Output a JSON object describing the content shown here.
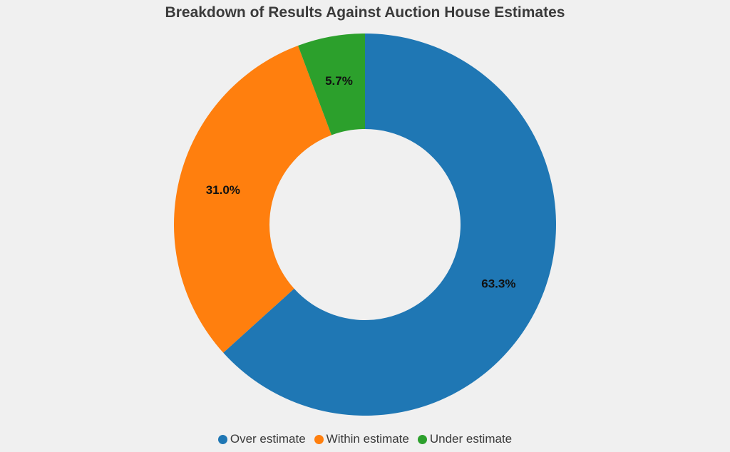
{
  "chart_data": {
    "type": "pie",
    "title": "Breakdown of Results Against Auction House Estimates",
    "categories": [
      "Over estimate",
      "Within estimate",
      "Under estimate"
    ],
    "values": [
      63.3,
      31.0,
      5.7
    ],
    "labels": [
      "63.3%",
      "31.0%",
      "5.7%"
    ],
    "colors": [
      "#1f77b4",
      "#ff7f0e",
      "#2ca02c"
    ],
    "donut": true,
    "legend_position": "bottom-center"
  }
}
